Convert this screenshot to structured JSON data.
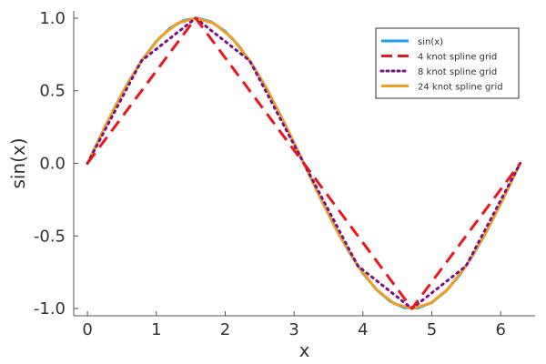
{
  "chart_data": {
    "type": "line",
    "title": "",
    "xlabel": "x",
    "ylabel": "sin(x)",
    "xlim": [
      -0.2,
      6.5
    ],
    "ylim": [
      -1.05,
      1.05
    ],
    "xticks": [
      0,
      1,
      2,
      3,
      4,
      5,
      6
    ],
    "xtick_labels": [
      "0",
      "1",
      "2",
      "3",
      "4",
      "5",
      "6"
    ],
    "yticks": [
      -1.0,
      -0.5,
      0.0,
      0.5,
      1.0
    ],
    "ytick_labels": [
      "-1.0",
      "-0.5",
      "0.0",
      "0.5",
      "1.0"
    ],
    "grid": false,
    "legend_position": "top-right",
    "series": [
      {
        "name": "sin(x)",
        "color": "#1f9ee8",
        "style": "solid",
        "x": [
          0,
          0.2,
          0.4,
          0.6,
          0.8,
          1.0,
          1.2,
          1.4,
          1.6,
          1.8,
          2.0,
          2.2,
          2.4,
          2.6,
          2.8,
          3.0,
          3.2,
          3.4,
          3.6,
          3.8,
          4.0,
          4.2,
          4.4,
          4.6,
          4.8,
          5.0,
          5.2,
          5.4,
          5.6,
          5.8,
          6.0,
          6.283
        ],
        "y": [
          0,
          0.199,
          0.389,
          0.565,
          0.717,
          0.841,
          0.932,
          0.985,
          1.0,
          0.974,
          0.909,
          0.808,
          0.675,
          0.516,
          0.335,
          0.141,
          -0.058,
          -0.256,
          -0.443,
          -0.612,
          -0.757,
          -0.872,
          -0.952,
          -0.994,
          -0.996,
          -0.959,
          -0.883,
          -0.773,
          -0.631,
          -0.465,
          -0.279,
          0
        ]
      },
      {
        "name": "4 knot spline grid",
        "color": "#e8161d",
        "style": "dashed",
        "x": [
          0,
          1.571,
          3.142,
          4.712,
          6.283
        ],
        "y": [
          0,
          1,
          0,
          -1,
          0
        ]
      },
      {
        "name": "8 knot spline grid",
        "color": "#7a0e8c",
        "style": "dotted",
        "x": [
          0,
          0.785,
          1.571,
          2.356,
          3.142,
          3.927,
          4.712,
          5.498,
          6.283
        ],
        "y": [
          0,
          0.707,
          1,
          0.707,
          0,
          -0.707,
          -1,
          -0.707,
          0
        ]
      },
      {
        "name": "24 knot spline grid",
        "color": "#f0a020",
        "style": "solid",
        "x": [
          0,
          0.262,
          0.524,
          0.785,
          1.047,
          1.309,
          1.571,
          1.833,
          2.094,
          2.356,
          2.618,
          2.88,
          3.142,
          3.403,
          3.665,
          3.927,
          4.189,
          4.451,
          4.712,
          4.974,
          5.236,
          5.498,
          5.76,
          6.021,
          6.283
        ],
        "y": [
          0,
          0.259,
          0.5,
          0.707,
          0.866,
          0.966,
          1,
          0.966,
          0.866,
          0.707,
          0.5,
          0.259,
          0,
          -0.259,
          -0.5,
          -0.707,
          -0.866,
          -0.966,
          -1,
          -0.966,
          -0.866,
          -0.707,
          -0.5,
          -0.259,
          0
        ]
      }
    ]
  }
}
